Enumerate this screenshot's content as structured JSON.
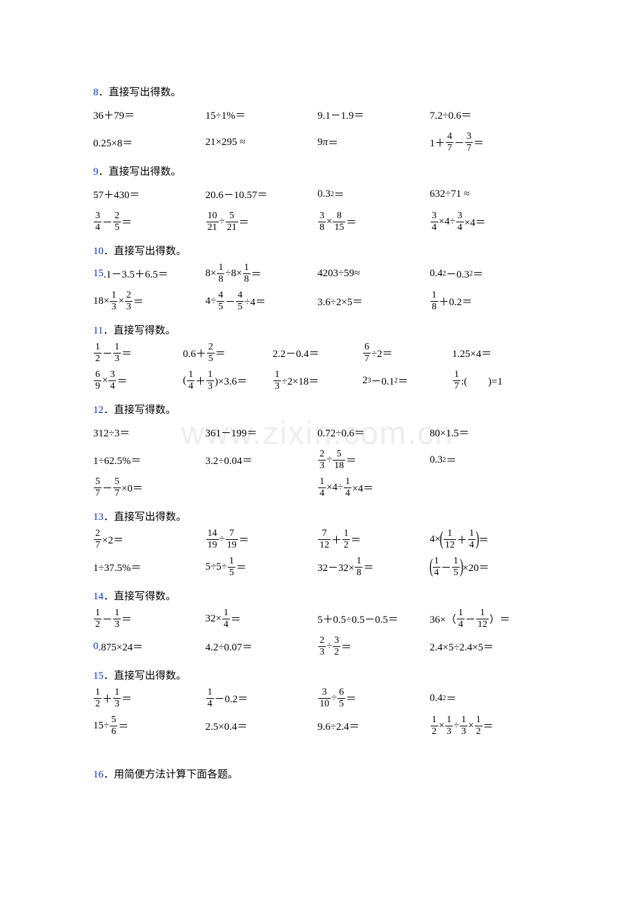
{
  "watermark": "www.zixin.com.cn",
  "colors": {
    "numColor": "#0033cc",
    "textColor": "#000000",
    "watermarkColor": "#eeeeee",
    "bg": "#ffffff"
  },
  "fontSizes": {
    "body": 15,
    "fracPart": 14,
    "sup": 10,
    "watermark": 46
  },
  "q8": {
    "num": "8",
    "title": "．直接写出得数。",
    "r1": {
      "a": "36＋79＝",
      "b": "15÷1%＝",
      "c": "9.1－1.9＝",
      "d": "7.2÷0.6＝"
    },
    "r2": {
      "a": "0.25×8＝",
      "b": "21×295 ≈",
      "c_pre": "9",
      "c_pi": "π",
      "c_post": "＝",
      "d_pre": "1＋",
      "d_f1n": "4",
      "d_f1d": "7",
      "d_mid": "－",
      "d_f2n": "3",
      "d_f2d": "7",
      "d_post": "＝"
    }
  },
  "q9": {
    "num": "9",
    "title": "．直接写出得数。",
    "r1": {
      "a": "57＋430＝",
      "b": "20.6－10.57＝",
      "c_pre": "0.3",
      "c_sup": "2",
      "c_post": "＝",
      "d": "632÷71 ≈"
    },
    "r2": {
      "a_f1n": "3",
      "a_f1d": "4",
      "a_mid": "－",
      "a_f2n": "2",
      "a_f2d": "5",
      "a_post": "＝",
      "b_f1n": "10",
      "b_f1d": "21",
      "b_mid": "÷",
      "b_f2n": "5",
      "b_f2d": "21",
      "b_post": "＝",
      "c_f1n": "3",
      "c_f1d": "8",
      "c_mid": "×",
      "c_f2n": "8",
      "c_f2d": "15",
      "c_post": "＝",
      "d_f1n": "3",
      "d_f1d": "4",
      "d_m1": "×4÷",
      "d_f2n": "3",
      "d_f2d": "4",
      "d_post": "×4＝"
    }
  },
  "q10": {
    "num": "10",
    "title": "．直接写出得数。",
    "r1": {
      "a_num": "15",
      "a_rest": ".1－3.5＋6.5＝",
      "b_pre": "8×",
      "b_f1n": "1",
      "b_f1d": "8",
      "b_mid": "÷8×",
      "b_f2n": "1",
      "b_f2d": "8",
      "b_post": "＝",
      "c": "4203÷59≈",
      "d_pre": "0.4",
      "d_s1": "2",
      "d_mid": "－0.3",
      "d_s2": "2",
      "d_post": "＝"
    },
    "r2": {
      "a_pre": "18×",
      "a_f1n": "1",
      "a_f1d": "3",
      "a_mid": "×",
      "a_f2n": "2",
      "a_f2d": "3",
      "a_post": "＝",
      "b_pre": "4÷",
      "b_f1n": "4",
      "b_f1d": "5",
      "b_mid": "－",
      "b_f2n": "4",
      "b_f2d": "5",
      "b_post": "÷4＝",
      "c": "3.6÷2×5＝",
      "d_f1n": "1",
      "d_f1d": "8",
      "d_post": "＋0.2＝"
    }
  },
  "q11": {
    "num": "11",
    "title": "．直接写得数。",
    "r1": {
      "a_f1n": "1",
      "a_f1d": "2",
      "a_mid": "－",
      "a_f2n": "1",
      "a_f2d": "3",
      "a_post": "＝",
      "b_pre": "0.6＋",
      "b_fn": "2",
      "b_fd": "5",
      "b_post": "＝",
      "c": "2.2－0.4＝",
      "d_fn": "6",
      "d_fd": "7",
      "d_post": "÷2＝",
      "e": "1.25×4＝"
    },
    "r2": {
      "a_f1n": "6",
      "a_f1d": "9",
      "a_mid": "×",
      "a_f2n": "3",
      "a_f2d": "4",
      "a_post": "＝",
      "b_pre": "(",
      "b_f1n": "1",
      "b_f1d": "4",
      "b_mid": "＋",
      "b_f2n": "1",
      "b_f2d": "3",
      "b_post": ")×3.6＝",
      "c_fn": "1",
      "c_fd": "3",
      "c_post": "÷2×18＝",
      "d_pre": "2",
      "d_s1": "3",
      "d_mid": "－0.1",
      "d_s2": "2",
      "d_post": "＝",
      "e_fn": "1",
      "e_fd": "7",
      "e_post": ":(　　)=1"
    }
  },
  "q12": {
    "num": "12",
    "title": "．直接写得数。",
    "r1": {
      "a": "312÷3＝",
      "b": "361－199＝",
      "c": "0.72÷0.6＝",
      "d": "80×1.5＝"
    },
    "r2": {
      "a": "1÷62.5%＝",
      "b": "3.2÷0.04＝",
      "c_f1n": "2",
      "c_f1d": "3",
      "c_mid": "÷",
      "c_f2n": "5",
      "c_f2d": "18",
      "c_post": "＝",
      "d_pre": "0.3",
      "d_sup": "2",
      "d_post": "＝"
    },
    "r3": {
      "a_f1n": "5",
      "a_f1d": "7",
      "a_mid": "－",
      "a_f2n": "5",
      "a_f2d": "7",
      "a_post": "×0＝",
      "b_f1n": "1",
      "b_f1d": "4",
      "b_mid": "×4÷",
      "b_f2n": "1",
      "b_f2d": "4",
      "b_post": "×4＝"
    }
  },
  "q13": {
    "num": "13",
    "title": "．直接写出得数。",
    "r1": {
      "a_fn": "2",
      "a_fd": "7",
      "a_post": "×2＝",
      "b_f1n": "14",
      "b_f1d": "19",
      "b_mid": "÷",
      "b_f2n": "7",
      "b_f2d": "19",
      "b_post": "＝",
      "c_f1n": "7",
      "c_f1d": "12",
      "c_mid": "＋",
      "c_f2n": "1",
      "c_f2d": "2",
      "c_post": "＝",
      "d_pre": "4×",
      "d_f1n": "1",
      "d_f1d": "12",
      "d_mid": "＋",
      "d_f2n": "1",
      "d_f2d": "4",
      "d_post": "＝"
    },
    "r2": {
      "a": "1÷37.5%＝",
      "b_pre": "5÷5÷",
      "b_fn": "1",
      "b_fd": "5",
      "b_post": "＝",
      "c_pre": "32－32×",
      "c_fn": "1",
      "c_fd": "8",
      "c_post": "＝",
      "d_f1n": "1",
      "d_f1d": "4",
      "d_mid": "－",
      "d_f2n": "1",
      "d_f2d": "5",
      "d_post": "×20＝"
    }
  },
  "q14": {
    "num": "14",
    "title": "．直接写得数。",
    "r1": {
      "a_f1n": "1",
      "a_f1d": "2",
      "a_mid": "－",
      "a_f2n": "1",
      "a_f2d": "3",
      "a_post": "＝",
      "b_pre": "32×",
      "b_fn": "1",
      "b_fd": "4",
      "b_post": "＝",
      "c": "5＋0.5÷0.5－0.5＝",
      "d_pre": "36×（",
      "d_f1n": "1",
      "d_f1d": "4",
      "d_mid": "－",
      "d_f2n": "1",
      "d_f2d": "12",
      "d_post": "）＝"
    },
    "r2": {
      "a_num": "0",
      "a_rest": ".875×24＝",
      "b": "4.2÷0.07＝",
      "c_f1n": "2",
      "c_f1d": "3",
      "c_mid": "÷",
      "c_f2n": "3",
      "c_f2d": "2",
      "c_post": "＝",
      "d": "2.4×5÷2.4×5＝"
    }
  },
  "q15": {
    "num": "15",
    "title": "．直接写出得数。",
    "r1": {
      "a_f1n": "1",
      "a_f1d": "2",
      "a_mid": "＋",
      "a_f2n": "1",
      "a_f2d": "3",
      "a_post": "＝",
      "b_fn": "1",
      "b_fd": "4",
      "b_post": "－0.2＝",
      "c_f1n": "3",
      "c_f1d": "10",
      "c_mid": "÷",
      "c_f2n": "6",
      "c_f2d": "5",
      "c_post": "＝",
      "d_pre": "0.4",
      "d_sup": "2",
      "d_post": "＝"
    },
    "r2": {
      "a_pre": "15÷",
      "a_fn": "5",
      "a_fd": "6",
      "a_post": "＝",
      "b": "2.5×0.4＝",
      "c": "9.6÷2.4＝",
      "d_f1n": "1",
      "d_f1d": "2",
      "d_m1": "×",
      "d_f2n": "1",
      "d_f2d": "3",
      "d_m2": "÷",
      "d_f3n": "1",
      "d_f3d": "3",
      "d_m3": "×",
      "d_f4n": "1",
      "d_f4d": "2",
      "d_post": "＝"
    }
  },
  "q16": {
    "num": "16",
    "title": "．用简便方法计算下面各题。"
  }
}
